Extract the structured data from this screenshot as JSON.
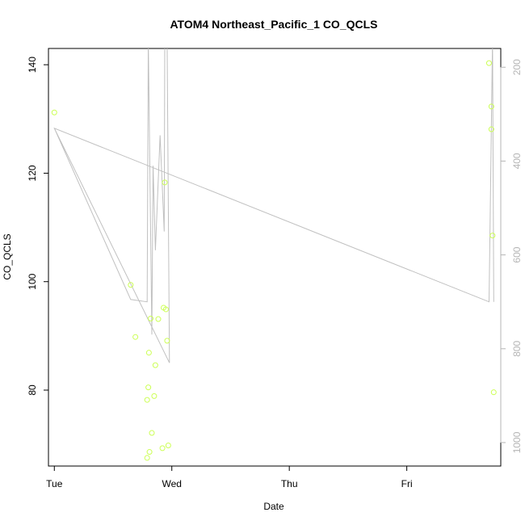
{
  "chart_data": {
    "type": "scatter",
    "title": "ATOM4 Northeast_Pacific_1 CO_QCLS",
    "xlabel": "Date",
    "ylabel": "CO_QCLS",
    "x_axis": {
      "type": "time",
      "range_days": [
        -0.05,
        3.8
      ],
      "ticks": [
        {
          "value": 0,
          "label": "Tue"
        },
        {
          "value": 1,
          "label": "Wed"
        },
        {
          "value": 2,
          "label": "Thu"
        },
        {
          "value": 3,
          "label": "Fri"
        }
      ]
    },
    "y_axis": {
      "range": [
        66,
        143
      ],
      "ticks": [
        80,
        100,
        120,
        140
      ]
    },
    "y2_axis": {
      "range": [
        1050,
        160
      ],
      "ticks": [
        200,
        400,
        600,
        800,
        1000
      ]
    },
    "grid": false,
    "colors": {
      "points": "#ccff55",
      "line": "#c0c0c0",
      "frame": "#000000",
      "right_axis": "#b5b5b5"
    },
    "series": [
      {
        "points": [
          {
            "x": 0.0,
            "y": 131.2
          },
          {
            "x": 0.65,
            "y": 99.4
          },
          {
            "x": 0.69,
            "y": 89.8
          },
          {
            "x": 0.79,
            "y": 78.2
          },
          {
            "x": 0.8,
            "y": 80.5
          },
          {
            "x": 0.805,
            "y": 86.9
          },
          {
            "x": 0.79,
            "y": 67.5
          },
          {
            "x": 0.81,
            "y": 68.6
          },
          {
            "x": 0.83,
            "y": 72.1
          },
          {
            "x": 0.82,
            "y": 93.2
          },
          {
            "x": 0.85,
            "y": 78.9
          },
          {
            "x": 0.86,
            "y": 84.6
          },
          {
            "x": 0.885,
            "y": 93.1
          },
          {
            "x": 0.92,
            "y": 69.3
          },
          {
            "x": 0.93,
            "y": 95.2
          },
          {
            "x": 0.94,
            "y": 118.3
          },
          {
            "x": 0.95,
            "y": 94.9
          },
          {
            "x": 0.96,
            "y": 89.1
          },
          {
            "x": 0.97,
            "y": 69.8
          },
          {
            "x": 3.7,
            "y": 140.3
          },
          {
            "x": 3.72,
            "y": 132.3
          },
          {
            "x": 3.72,
            "y": 128.1
          },
          {
            "x": 3.73,
            "y": 108.5
          },
          {
            "x": 3.74,
            "y": 79.6
          }
        ]
      },
      {
        "axis": "y2",
        "points": [
          {
            "x": 0.0,
            "y": 330
          },
          {
            "x": 0.98,
            "y": 830
          },
          {
            "x": 0.96,
            "y": 140
          },
          {
            "x": 0.94,
            "y": 140
          },
          {
            "x": 0.935,
            "y": 550
          },
          {
            "x": 0.9,
            "y": 345
          },
          {
            "x": 0.86,
            "y": 590
          },
          {
            "x": 0.84,
            "y": 410
          },
          {
            "x": 0.83,
            "y": 770
          },
          {
            "x": 0.8,
            "y": 140
          },
          {
            "x": 0.79,
            "y": 700
          },
          {
            "x": 0.65,
            "y": 695
          },
          {
            "x": 0.0,
            "y": 330
          },
          {
            "x": 3.7,
            "y": 700
          },
          {
            "x": 3.73,
            "y": 140
          },
          {
            "x": 3.74,
            "y": 700
          }
        ]
      }
    ]
  }
}
